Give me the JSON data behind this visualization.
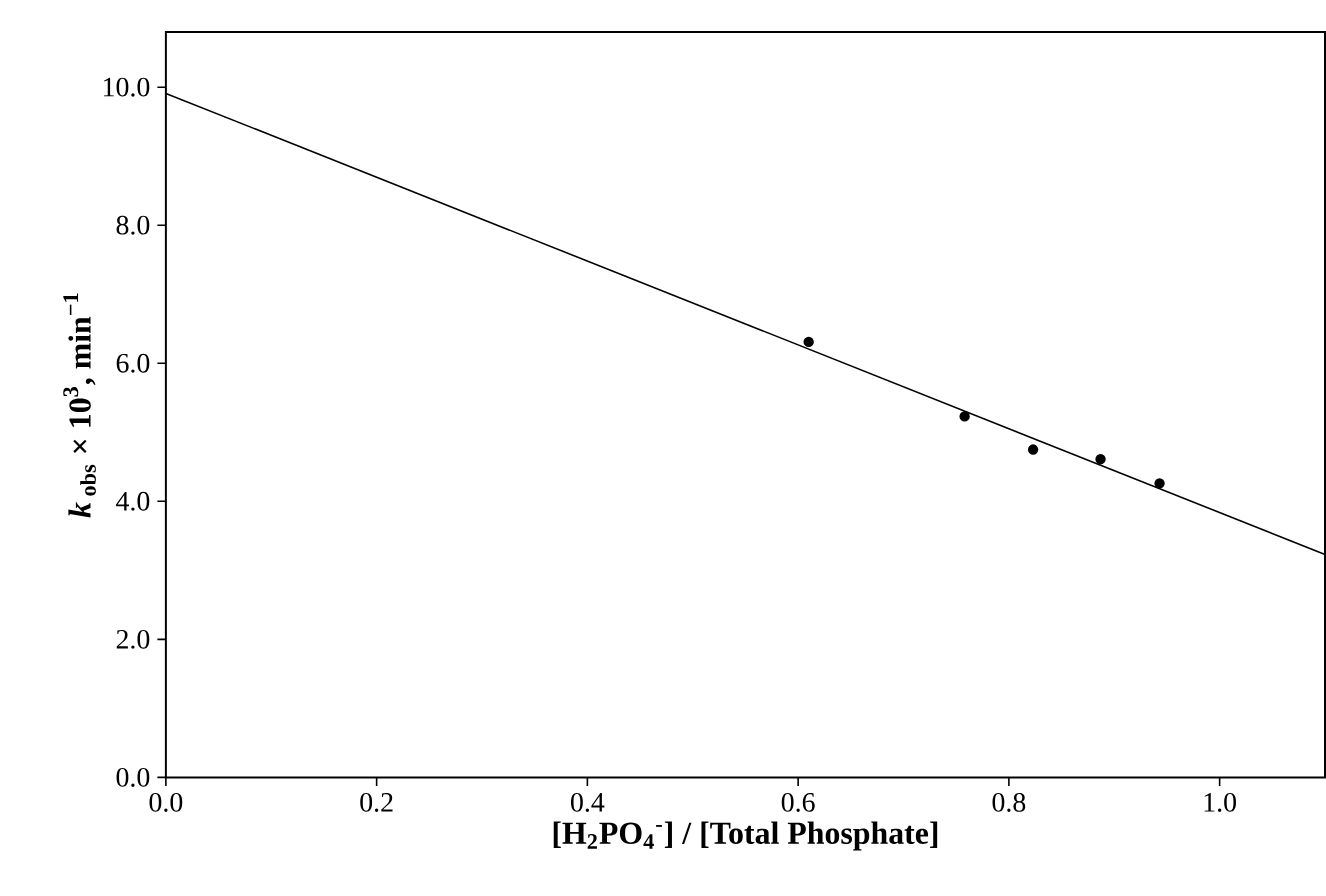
{
  "chart_data": {
    "type": "scatter",
    "xlabel": "[H$_{2}$PO$_{4}$$^{-}$] / [Total Phosphate]",
    "ylabel": "*k*$_{ obs}$ × 10$^{3}$, min$^{−1}$",
    "xlim": [
      0,
      1.1
    ],
    "ylim": [
      0,
      10.8
    ],
    "xticks": [
      {
        "value": 0,
        "label": "0.0"
      },
      0.2,
      0.4,
      0.6,
      0.8,
      {
        "value": 1,
        "label": "1.0"
      }
    ],
    "yticks": [
      {
        "value": 0,
        "label": "0.0"
      },
      {
        "value": 2,
        "label": "2.0"
      },
      {
        "value": 4,
        "label": "4.0"
      },
      {
        "value": 6,
        "label": "6.0"
      },
      {
        "value": 8,
        "label": "8.0"
      },
      {
        "value": 10,
        "label": "10.0"
      }
    ],
    "series": [
      {
        "color": "#000000",
        "marker": "circle",
        "x": [
          0.61,
          0.758,
          0.823,
          0.887,
          0.943
        ],
        "values": [
          6.31,
          5.23,
          4.75,
          4.61,
          4.26
        ]
      },
      {
        "type": "line",
        "color": "#000000",
        "marker": "none",
        "line_style": "solid",
        "x": [
          0,
          1.1
        ],
        "values": [
          9.91,
          3.23
        ]
      }
    ]
  }
}
